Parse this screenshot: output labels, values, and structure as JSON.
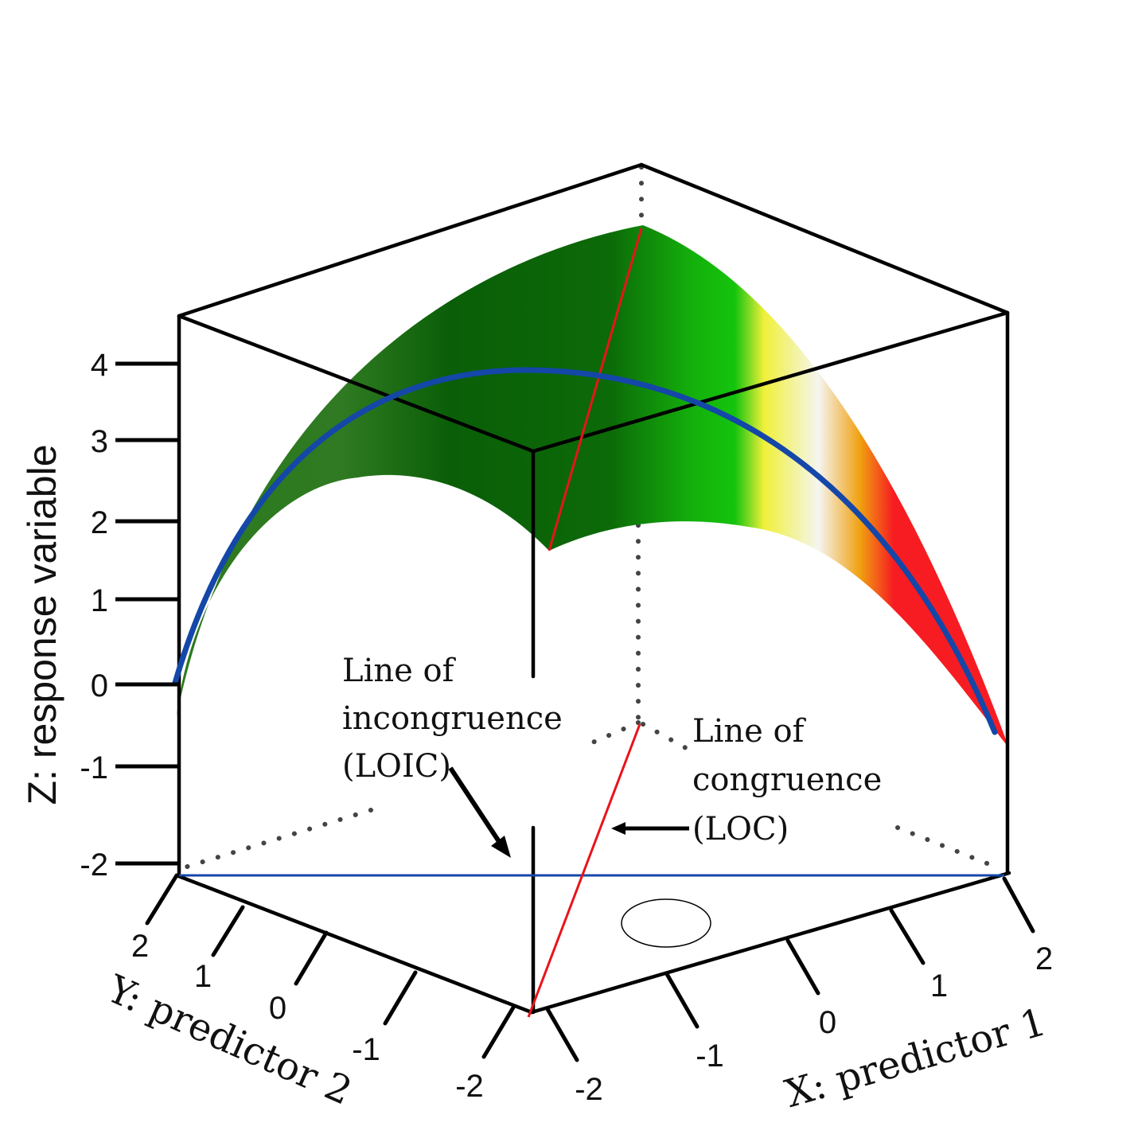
{
  "axes": {
    "z": {
      "title": "Z: response variable",
      "ticks": [
        "4",
        "3",
        "2",
        "1",
        "0",
        "-1",
        "-2"
      ]
    },
    "y": {
      "title": "Y: predictor 2",
      "ticks": [
        "2",
        "1",
        "0",
        "-1",
        "-2"
      ]
    },
    "x": {
      "title": "X: predictor 1",
      "ticks": [
        "-2",
        "-1",
        "0",
        "1",
        "2"
      ]
    }
  },
  "annotations": {
    "loic": [
      "Line of",
      "incongruence",
      "(LOIC)"
    ],
    "loc": [
      "Line of",
      "congruence",
      "(LOC)"
    ]
  },
  "colors": {
    "frame": "#000000",
    "loc_line": "#e8141b",
    "loic_curve": "#1447a8",
    "surface_stops": [
      "#2d7a1e",
      "#0a5e07",
      "#0c6a08",
      "#14c40d",
      "#f2f23a",
      "#f5f5f0",
      "#f0a010",
      "#f71c22"
    ]
  }
}
